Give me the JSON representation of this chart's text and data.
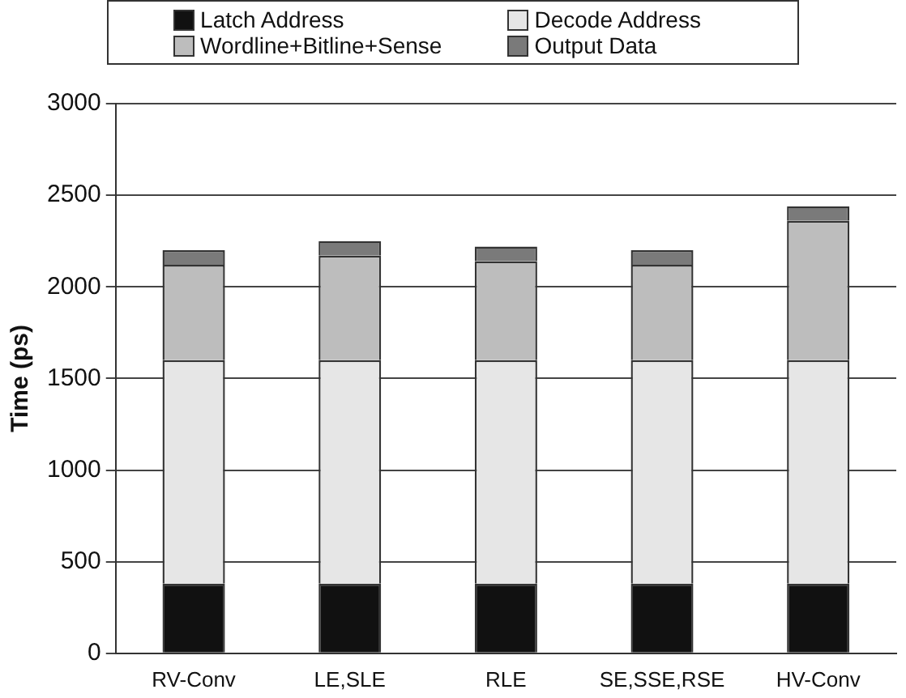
{
  "chart_data": {
    "type": "bar",
    "ylabel": "Time (ps)",
    "categories": [
      "RV-Conv",
      "LE,SLE",
      "RLE",
      "SE,SSE,RSE",
      "HV-Conv"
    ],
    "series": [
      {
        "name": "Latch Address",
        "color": "#111111",
        "values": [
          380,
          380,
          380,
          380,
          380
        ]
      },
      {
        "name": "Decode Address",
        "color": "#e6e6e6",
        "values": [
          1220,
          1220,
          1220,
          1220,
          1220
        ]
      },
      {
        "name": "Wordline+Bitline+Sense",
        "color": "#bdbdbd",
        "values": [
          520,
          570,
          540,
          520,
          760
        ]
      },
      {
        "name": "Output Data",
        "color": "#7a7a7a",
        "values": [
          80,
          80,
          80,
          80,
          80
        ]
      }
    ],
    "stacked": true,
    "ylim": [
      0,
      3000
    ],
    "yticks": [
      0,
      500,
      1000,
      1500,
      2000,
      2500,
      3000
    ],
    "grid": "y",
    "legend": "top"
  }
}
